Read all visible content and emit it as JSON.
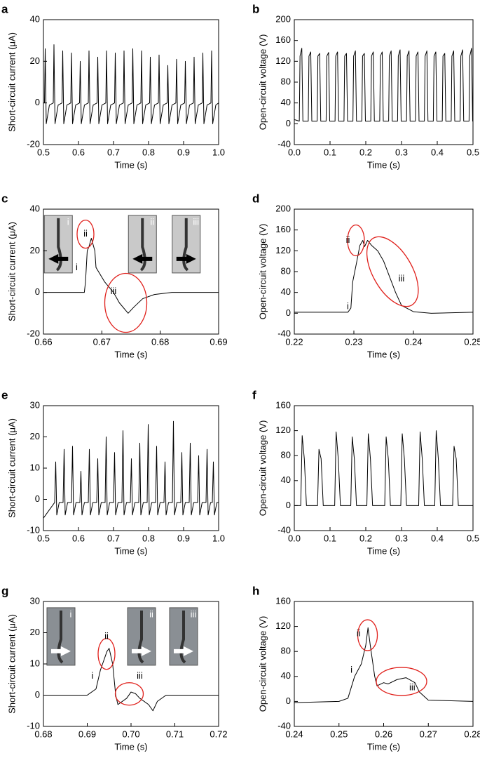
{
  "chart_data": [
    {
      "type": "line",
      "panel": "a",
      "xlabel": "Time (s)",
      "ylabel": "Short-circuit current (μA)",
      "color": "#000000",
      "xlim": [
        0.5,
        1
      ],
      "ylim": [
        -20,
        40
      ],
      "xticks": [
        0.5,
        0.6,
        0.7,
        0.8,
        0.9,
        {
          "value": 1,
          "label": "1.0"
        }
      ],
      "yticks": [
        -20,
        0,
        20,
        40
      ],
      "x": [
        0.5,
        0.503,
        0.505,
        0.508,
        0.517,
        0.528,
        0.53,
        0.533,
        0.542,
        0.553,
        0.555,
        0.558,
        0.567,
        0.578,
        0.58,
        0.583,
        0.592,
        0.603,
        0.605,
        0.608,
        0.617,
        0.628,
        0.63,
        0.633,
        0.642,
        0.653,
        0.655,
        0.658,
        0.667,
        0.678,
        0.68,
        0.683,
        0.692,
        0.703,
        0.705,
        0.708,
        0.717,
        0.728,
        0.73,
        0.733,
        0.742,
        0.753,
        0.755,
        0.758,
        0.767,
        0.778,
        0.78,
        0.783,
        0.792,
        0.803,
        0.805,
        0.808,
        0.817,
        0.828,
        0.83,
        0.833,
        0.842,
        0.853,
        0.855,
        0.858,
        0.867,
        0.878,
        0.88,
        0.883,
        0.892,
        0.903,
        0.905,
        0.908,
        0.917,
        0.928,
        0.93,
        0.933,
        0.942,
        0.953,
        0.955,
        0.958,
        0.967,
        0.978,
        0.98,
        0.983,
        0.992,
        1.0
      ],
      "values": [
        0,
        0,
        26,
        -10,
        -1,
        0,
        28,
        -10,
        -1,
        0,
        25,
        -10,
        -1,
        0,
        24,
        -10,
        -1,
        0,
        20,
        -10,
        -1,
        0,
        25,
        -10,
        -1,
        0,
        22,
        -10,
        -1,
        0,
        25,
        -10,
        -1,
        0,
        24,
        -10,
        -1,
        0,
        25,
        -10,
        -1,
        0,
        26,
        -10,
        -1,
        0,
        25,
        -10,
        -1,
        0,
        22,
        -10,
        -1,
        0,
        23,
        -10,
        -1,
        0,
        18,
        -10,
        -1,
        0,
        21,
        -10,
        -1,
        0,
        20,
        -10,
        -1,
        0,
        22,
        -10,
        -1,
        0,
        24,
        -10,
        -1,
        0,
        25,
        -10,
        -1,
        0
      ]
    },
    {
      "type": "line",
      "panel": "b",
      "xlabel": "Time (s)",
      "ylabel": "Open-circuit voltage (V)",
      "color": "#000000",
      "xlim": [
        0,
        0.5
      ],
      "ylim": [
        -40,
        200
      ],
      "xticks": [
        {
          "value": 0,
          "label": "0.0"
        },
        0.1,
        0.2,
        0.3,
        0.4,
        0.5
      ],
      "yticks": [
        -40,
        0,
        40,
        80,
        120,
        160,
        200
      ],
      "x": [
        0,
        0.014,
        0.016,
        0.021,
        0.024,
        0.039,
        0.041,
        0.046,
        0.049,
        0.064,
        0.066,
        0.071,
        0.074,
        0.089,
        0.091,
        0.096,
        0.099,
        0.114,
        0.116,
        0.121,
        0.124,
        0.139,
        0.141,
        0.146,
        0.149,
        0.164,
        0.166,
        0.171,
        0.174,
        0.189,
        0.191,
        0.196,
        0.199,
        0.214,
        0.216,
        0.221,
        0.224,
        0.239,
        0.241,
        0.246,
        0.249,
        0.264,
        0.266,
        0.271,
        0.274,
        0.289,
        0.291,
        0.296,
        0.299,
        0.314,
        0.316,
        0.321,
        0.324,
        0.339,
        0.341,
        0.346,
        0.349,
        0.364,
        0.366,
        0.371,
        0.374,
        0.389,
        0.391,
        0.396,
        0.399,
        0.414,
        0.416,
        0.421,
        0.424,
        0.439,
        0.441,
        0.446,
        0.449,
        0.464,
        0.466,
        0.471,
        0.474,
        0.489,
        0.491,
        0.496,
        0.499,
        0.5
      ],
      "values": [
        8,
        5,
        130,
        145,
        5,
        5,
        130,
        138,
        5,
        5,
        130,
        135,
        5,
        5,
        130,
        137,
        5,
        5,
        130,
        138,
        5,
        5,
        130,
        135,
        5,
        5,
        130,
        140,
        5,
        5,
        130,
        135,
        5,
        5,
        130,
        138,
        5,
        5,
        130,
        138,
        5,
        5,
        130,
        140,
        5,
        5,
        130,
        142,
        5,
        5,
        130,
        140,
        5,
        5,
        130,
        138,
        5,
        5,
        130,
        140,
        5,
        5,
        130,
        138,
        5,
        5,
        130,
        135,
        5,
        5,
        130,
        140,
        5,
        5,
        130,
        142,
        5,
        5,
        130,
        145,
        5,
        5
      ]
    },
    {
      "type": "line",
      "panel": "c",
      "xlabel": "Time (s)",
      "ylabel": "Short-circuit current (μA)",
      "color": "#000000",
      "xlim": [
        0.66,
        0.69
      ],
      "ylim": [
        -20,
        40
      ],
      "xticks": [
        0.66,
        0.67,
        0.68,
        0.69
      ],
      "yticks": [
        -20,
        0,
        20,
        40
      ],
      "annotations": [
        "i",
        "ii",
        "iii"
      ],
      "inset_labels": [
        "i",
        "ii",
        "iii"
      ],
      "x": [
        0.66,
        0.667,
        0.6672,
        0.6675,
        0.6678,
        0.6682,
        0.6688,
        0.669,
        0.6705,
        0.672,
        0.673,
        0.6745,
        0.6755,
        0.677,
        0.679,
        0.682,
        0.69
      ],
      "values": [
        0,
        0,
        5,
        20,
        22,
        26,
        20,
        12,
        5,
        0,
        -5,
        -10,
        -7,
        -3,
        -1,
        0,
        0
      ]
    },
    {
      "type": "line",
      "panel": "d",
      "xlabel": "Time (s)",
      "ylabel": "Open-circuit voltage (V)",
      "color": "#000000",
      "xlim": [
        0.22,
        0.25
      ],
      "ylim": [
        -40,
        200
      ],
      "xticks": [
        0.22,
        0.23,
        0.24,
        0.25
      ],
      "yticks": [
        -40,
        0,
        40,
        80,
        120,
        160,
        200
      ],
      "annotations": [
        "i",
        "ii",
        "iii"
      ],
      "x": [
        0.22,
        0.229,
        0.2295,
        0.2298,
        0.2305,
        0.231,
        0.2315,
        0.2318,
        0.2323,
        0.233,
        0.234,
        0.235,
        0.236,
        0.237,
        0.238,
        0.24,
        0.243,
        0.25
      ],
      "values": [
        2,
        2,
        10,
        60,
        100,
        130,
        140,
        128,
        140,
        130,
        120,
        100,
        70,
        40,
        15,
        3,
        0,
        2
      ]
    },
    {
      "type": "line",
      "panel": "e",
      "xlabel": "Time (s)",
      "ylabel": "Short-circuit current (μA)",
      "color": "#000000",
      "xlim": [
        0.5,
        1
      ],
      "ylim": [
        -10,
        30
      ],
      "xticks": [
        0.5,
        0.6,
        0.7,
        0.8,
        0.9,
        {
          "value": 1,
          "label": "1.0"
        }
      ],
      "yticks": [
        -10,
        0,
        10,
        20,
        30
      ],
      "x": [
        0.5,
        0.532,
        0.535,
        0.538,
        0.545,
        0.556,
        0.559,
        0.562,
        0.569,
        0.58,
        0.583,
        0.586,
        0.593,
        0.604,
        0.607,
        0.61,
        0.617,
        0.628,
        0.631,
        0.634,
        0.641,
        0.652,
        0.655,
        0.658,
        0.665,
        0.676,
        0.679,
        0.682,
        0.689,
        0.7,
        0.703,
        0.706,
        0.713,
        0.724,
        0.727,
        0.73,
        0.737,
        0.748,
        0.751,
        0.754,
        0.761,
        0.772,
        0.775,
        0.778,
        0.785,
        0.796,
        0.799,
        0.802,
        0.809,
        0.82,
        0.823,
        0.826,
        0.833,
        0.844,
        0.847,
        0.85,
        0.857,
        0.868,
        0.871,
        0.874,
        0.881,
        0.892,
        0.895,
        0.898,
        0.905,
        0.916,
        0.919,
        0.922,
        0.929,
        0.94,
        0.943,
        0.946,
        0.953,
        0.964,
        0.967,
        0.97,
        0.977,
        0.982,
        0.985,
        0.988,
        0.995,
        1.0
      ],
      "values": [
        -6,
        -1,
        12,
        -5,
        -1,
        -1,
        16,
        -5,
        -1,
        -1,
        17,
        -5,
        -1,
        -1,
        9,
        -5,
        -1,
        -1,
        16,
        -5,
        -1,
        -1,
        13,
        -5,
        -1,
        -1,
        20,
        -5,
        -1,
        -1,
        15,
        -5,
        -1,
        -1,
        22,
        -5,
        -1,
        -1,
        13,
        -5,
        -1,
        -1,
        18,
        -5,
        -1,
        -1,
        24,
        -5,
        -1,
        -1,
        17,
        -5,
        -1,
        -1,
        12,
        -5,
        -1,
        -1,
        25,
        -5,
        -1,
        -1,
        15,
        -5,
        -1,
        -1,
        18,
        -5,
        -1,
        -1,
        14,
        -5,
        -1,
        -1,
        16,
        -5,
        -1,
        -1,
        12,
        -5,
        -1,
        -1
      ]
    },
    {
      "type": "line",
      "panel": "f",
      "xlabel": "Time (s)",
      "ylabel": "Open-circuit voltage (V)",
      "color": "#000000",
      "xlim": [
        0,
        0.5
      ],
      "ylim": [
        -40,
        160
      ],
      "xticks": [
        {
          "value": 0,
          "label": "0.0"
        },
        0.1,
        0.2,
        0.3,
        0.4,
        0.5
      ],
      "yticks": [
        -40,
        0,
        40,
        80,
        120,
        160
      ],
      "x": [
        0,
        0.018,
        0.022,
        0.028,
        0.034,
        0.065,
        0.069,
        0.075,
        0.081,
        0.113,
        0.117,
        0.123,
        0.129,
        0.158,
        0.162,
        0.168,
        0.174,
        0.203,
        0.207,
        0.213,
        0.219,
        0.253,
        0.257,
        0.263,
        0.269,
        0.298,
        0.302,
        0.308,
        0.314,
        0.348,
        0.352,
        0.358,
        0.364,
        0.393,
        0.397,
        0.403,
        0.409,
        0.443,
        0.447,
        0.453,
        0.459,
        0.5
      ],
      "values": [
        0,
        0,
        112,
        75,
        0,
        0,
        90,
        75,
        0,
        0,
        118,
        75,
        0,
        0,
        110,
        75,
        0,
        0,
        115,
        75,
        0,
        0,
        110,
        75,
        0,
        0,
        115,
        75,
        0,
        0,
        118,
        75,
        0,
        0,
        120,
        75,
        0,
        0,
        95,
        75,
        0,
        0
      ]
    },
    {
      "type": "line",
      "panel": "g",
      "xlabel": "Time (s)",
      "ylabel": "Short-circuit current (μA)",
      "color": "#000000",
      "xlim": [
        0.68,
        0.72
      ],
      "ylim": [
        -10,
        30
      ],
      "xticks": [
        0.68,
        0.69,
        {
          "value": 0.7,
          "label": "0.70"
        },
        0.71,
        0.72
      ],
      "yticks": [
        -10,
        0,
        10,
        20,
        30
      ],
      "annotations": [
        "i",
        "ii",
        "iii"
      ],
      "inset_labels": [
        "i",
        "ii",
        "iii"
      ],
      "x": [
        0.68,
        0.69,
        0.692,
        0.693,
        0.6935,
        0.6945,
        0.695,
        0.6958,
        0.6965,
        0.697,
        0.699,
        0.7,
        0.701,
        0.702,
        0.704,
        0.705,
        0.706,
        0.708,
        0.72
      ],
      "values": [
        0,
        0,
        2,
        8,
        10,
        14,
        15,
        10,
        0,
        -3,
        -1,
        1,
        0.5,
        -1,
        -3,
        -5,
        -2,
        0,
        0
      ]
    },
    {
      "type": "line",
      "panel": "h",
      "xlabel": "Time (s)",
      "ylabel": "Open-circuit voltage (V)",
      "color": "#000000",
      "xlim": [
        0.24,
        0.28
      ],
      "ylim": [
        -40,
        160
      ],
      "xticks": [
        0.24,
        0.25,
        0.26,
        0.27,
        0.28
      ],
      "yticks": [
        -40,
        0,
        40,
        80,
        120,
        160
      ],
      "annotations": [
        "i",
        "ii",
        "iii"
      ],
      "x": [
        0.24,
        0.25,
        0.252,
        0.2535,
        0.255,
        0.256,
        0.2565,
        0.257,
        0.258,
        0.2585,
        0.26,
        0.261,
        0.263,
        0.265,
        0.267,
        0.268,
        0.27,
        0.28
      ],
      "values": [
        -2,
        0,
        5,
        40,
        60,
        90,
        118,
        90,
        40,
        25,
        30,
        28,
        35,
        38,
        30,
        15,
        2,
        0
      ]
    }
  ]
}
